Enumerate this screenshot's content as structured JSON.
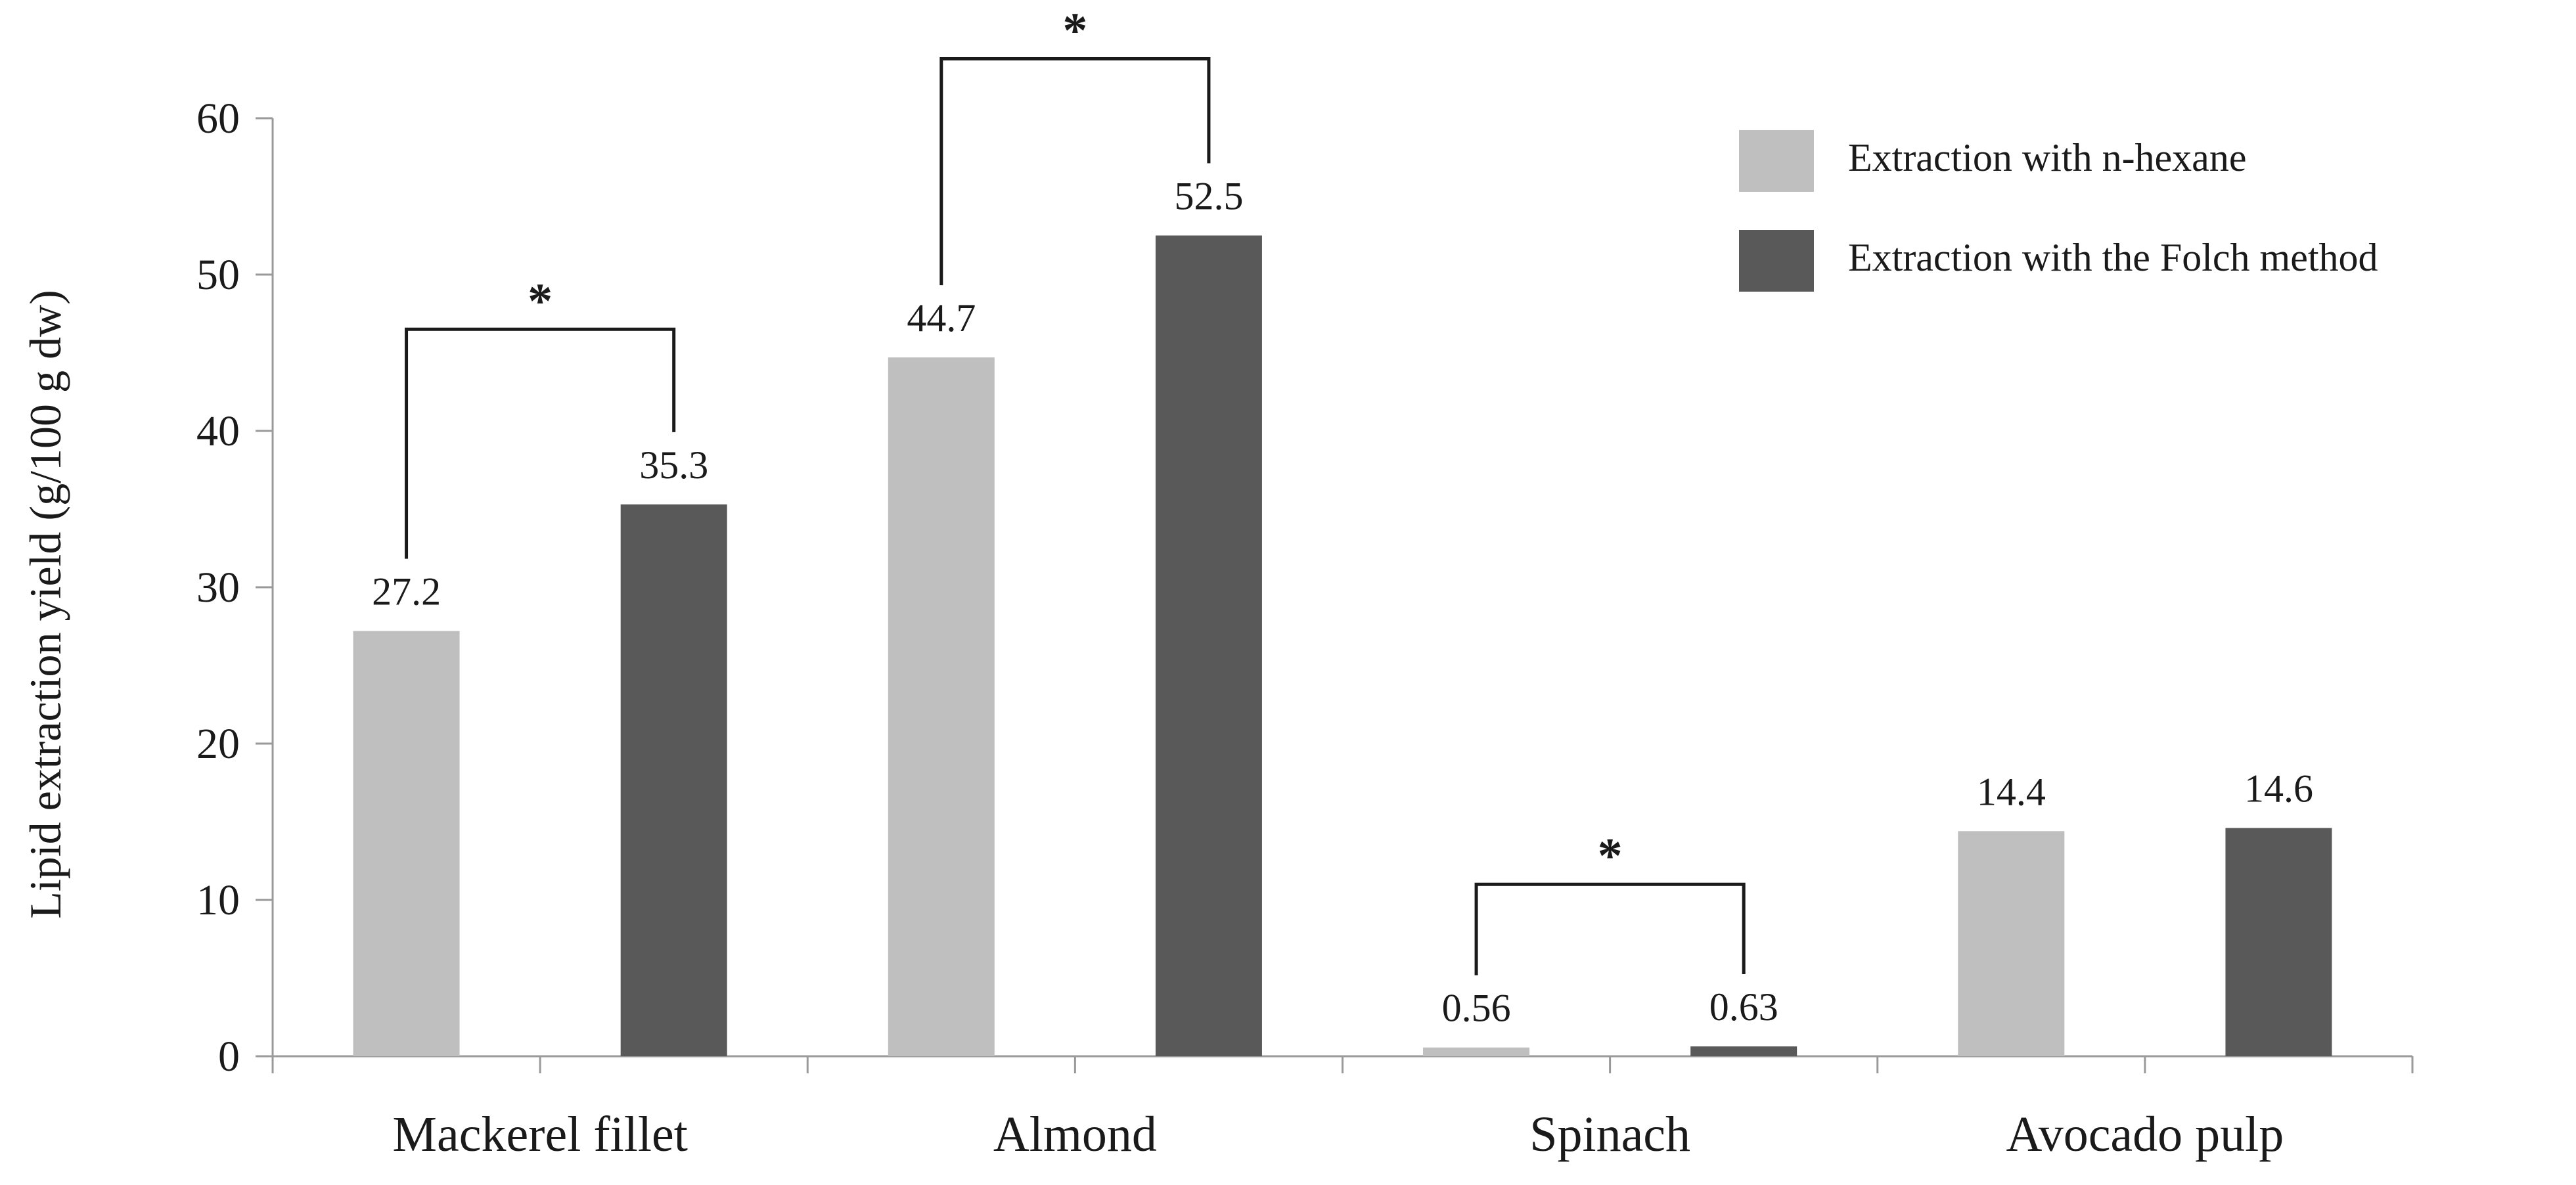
{
  "chart_data": {
    "type": "bar",
    "title": "",
    "xlabel": "",
    "ylabel": "Lipid extraction yield  (g/100 g dw)",
    "ylim": [
      0,
      60
    ],
    "yticks": [
      0,
      10,
      20,
      30,
      40,
      50,
      60
    ],
    "categories": [
      "Mackerel  fillet",
      "Almond",
      "Spinach",
      "Avocado pulp"
    ],
    "series": [
      {
        "name": "Extraction with n-hexane",
        "color": "#bfbfbf",
        "values": [
          27.2,
          44.7,
          0.56,
          14.4
        ],
        "labels": [
          "27.2",
          "44.7",
          "0.56",
          "14.4"
        ]
      },
      {
        "name": "Extraction with the Folch method",
        "color": "#595959",
        "values": [
          35.3,
          52.5,
          0.63,
          14.6
        ],
        "labels": [
          "35.3",
          "52.5",
          "0.63",
          "14.6"
        ]
      }
    ],
    "significance": [
      {
        "category_index": 0,
        "marker": "*",
        "bracket_level": 46.5
      },
      {
        "category_index": 1,
        "marker": "*",
        "bracket_level": 63.8
      },
      {
        "category_index": 2,
        "marker": "*",
        "bracket_level": 11.0
      }
    ],
    "legend_position": "top-right",
    "grid": false
  }
}
